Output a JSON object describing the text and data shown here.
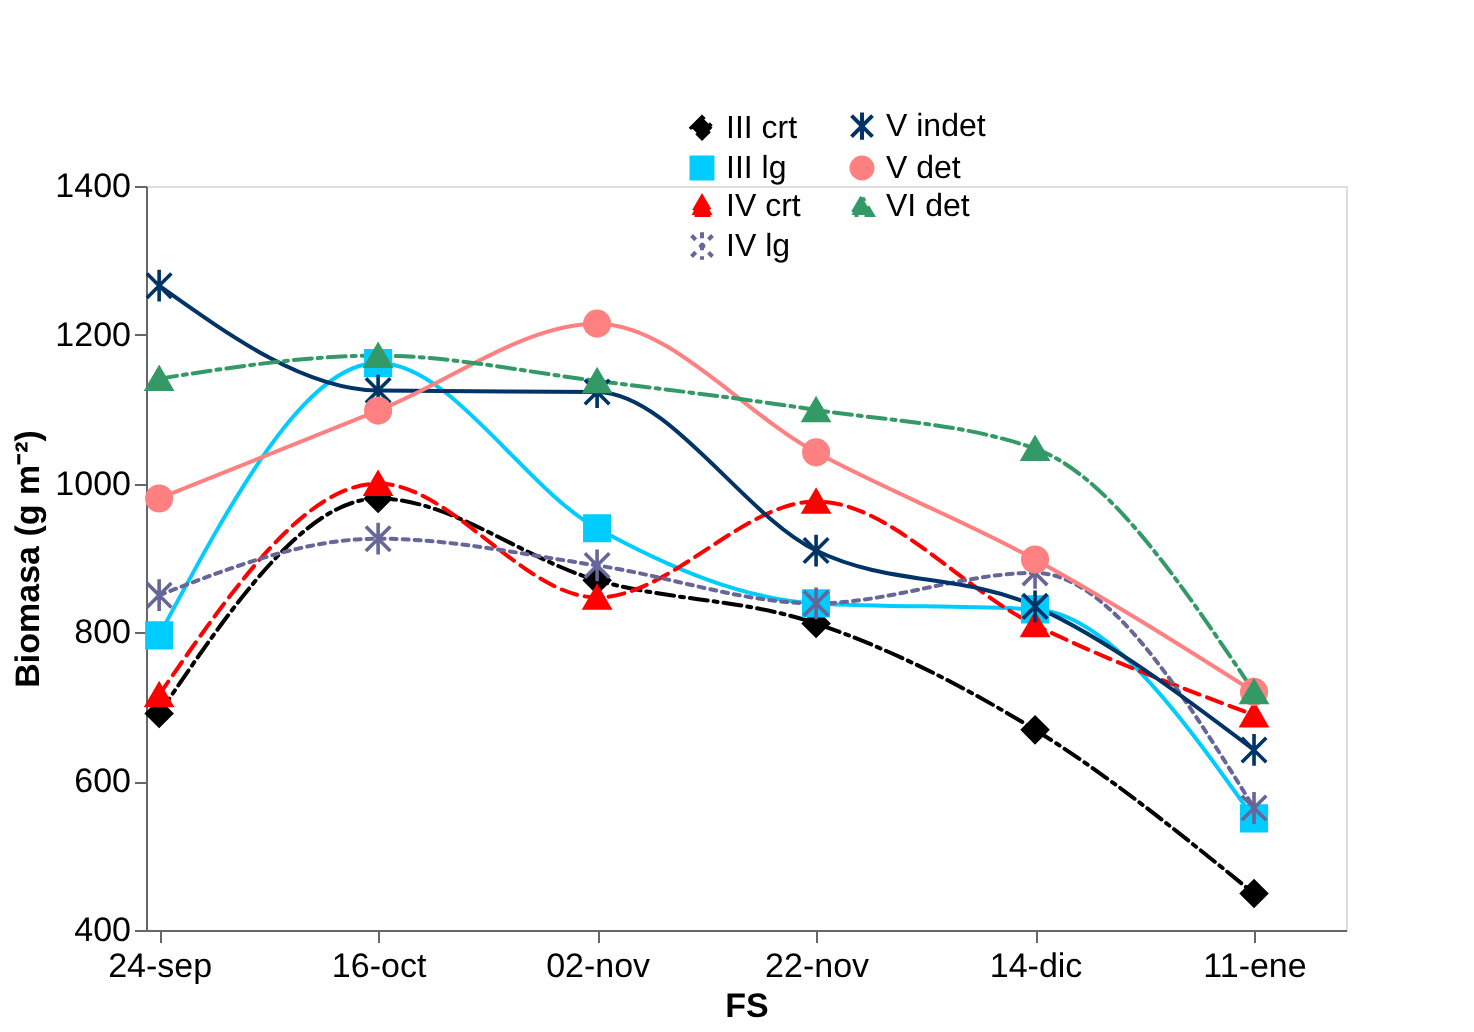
{
  "chart_data": {
    "type": "line",
    "xlabel": "FS",
    "ylabel": "Biomasa (g m⁻²)",
    "categories": [
      "24-sep",
      "16-oct",
      "02-nov",
      "22-nov",
      "14-dic",
      "11-ene"
    ],
    "ylim": [
      400,
      1400
    ],
    "yticks": [
      400,
      600,
      800,
      1000,
      1200,
      1400
    ],
    "grid": false,
    "legend": "top right",
    "series": [
      {
        "name": "III crt",
        "color": "#000000",
        "marker": "diamond",
        "line_style": "dashdot",
        "values": [
          691,
          980,
          870,
          812,
          669,
          449
        ]
      },
      {
        "name": "III lg",
        "color": "#00ccff",
        "marker": "square",
        "line_style": "solid",
        "values": [
          796,
          1162,
          940,
          839,
          831,
          550
        ]
      },
      {
        "name": "IV crt",
        "color": "#ff0000",
        "marker": "triangle",
        "line_style": "dashed",
        "values": [
          716,
          1000,
          847,
          976,
          810,
          689
        ]
      },
      {
        "name": "IV lg",
        "color": "#666699",
        "marker": "cross",
        "line_style": "dotted",
        "values": [
          850,
          926,
          890,
          839,
          880,
          564
        ]
      },
      {
        "name": "V indet",
        "color": "#003366",
        "marker": "cross",
        "line_style": "solid",
        "values": [
          1266,
          1125,
          1123,
          910,
          835,
          642
        ]
      },
      {
        "name": "V det",
        "color": "#ff8080",
        "marker": "circle",
        "line_style": "solid",
        "values": [
          980,
          1098,
          1215,
          1042,
          898,
          720
        ]
      },
      {
        "name": "VI det",
        "color": "#339966",
        "marker": "triangle",
        "line_style": "dashdot",
        "values": [
          1141,
          1172,
          1138,
          1099,
          1047,
          720
        ]
      }
    ]
  }
}
